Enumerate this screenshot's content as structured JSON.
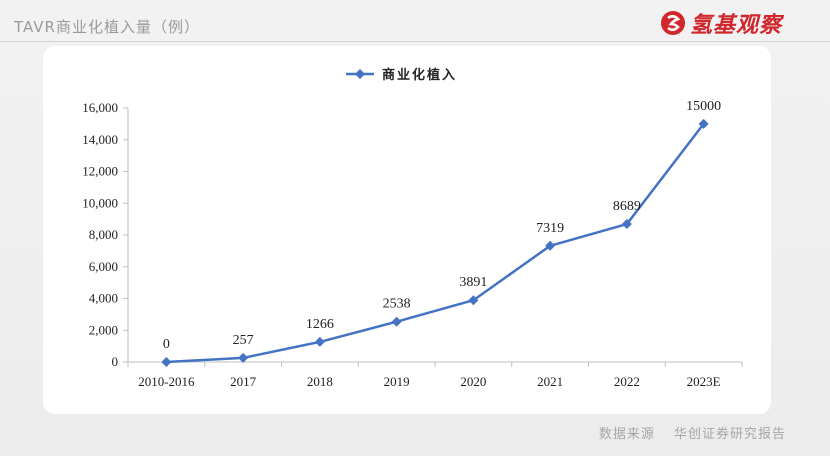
{
  "header": {
    "title": "TAVR商业化植入量（例）",
    "brand_text": "氢基观察"
  },
  "footer": {
    "source_label": "数据来源",
    "source_text": "华创证券研究报告"
  },
  "colors": {
    "series": "#4472c4",
    "brand": "#d0262c"
  },
  "chart_data": {
    "type": "line",
    "categories": [
      "2010-2016",
      "2017",
      "2018",
      "2019",
      "2020",
      "2021",
      "2022",
      "2023E"
    ],
    "series": [
      {
        "name": "商业化植入",
        "values": [
          0,
          257,
          1266,
          2538,
          3891,
          7319,
          8689,
          15000
        ]
      }
    ],
    "data_labels": [
      "0",
      "257",
      "1266",
      "2538",
      "3891",
      "7319",
      "8689",
      "15000"
    ],
    "yticks": [
      0,
      2000,
      4000,
      6000,
      8000,
      10000,
      12000,
      14000,
      16000
    ],
    "ytick_labels": [
      "0",
      "2,000",
      "4,000",
      "6,000",
      "8,000",
      "10,000",
      "12,000",
      "14,000",
      "16,000"
    ],
    "ylim": [
      0,
      16000
    ],
    "legend": "top-center",
    "grid": false,
    "marker": "diamond"
  }
}
